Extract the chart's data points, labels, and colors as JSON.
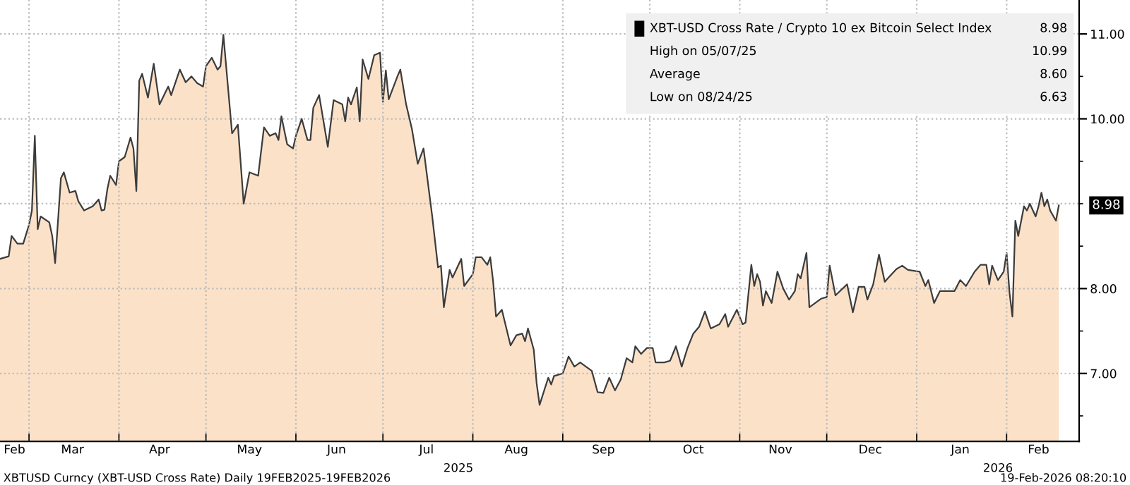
{
  "chart_data": {
    "type": "area",
    "x": [
      "2025-02-19",
      "2025-02-22",
      "2025-02-23",
      "2025-02-25",
      "2025-02-27",
      "2025-03-01",
      "2025-03-02",
      "2025-03-03",
      "2025-03-04",
      "2025-03-05",
      "2025-03-08",
      "2025-03-09",
      "2025-03-10",
      "2025-03-12",
      "2025-03-13",
      "2025-03-15",
      "2025-03-17",
      "2025-03-18",
      "2025-03-20",
      "2025-03-23",
      "2025-03-25",
      "2025-03-26",
      "2025-03-27",
      "2025-03-28",
      "2025-03-29",
      "2025-03-31",
      "2025-04-01",
      "2025-04-03",
      "2025-04-05",
      "2025-04-06",
      "2025-04-07",
      "2025-04-08",
      "2025-04-09",
      "2025-04-11",
      "2025-04-13",
      "2025-04-15",
      "2025-04-18",
      "2025-04-19",
      "2025-04-22",
      "2025-04-24",
      "2025-04-26",
      "2025-04-28",
      "2025-04-30",
      "2025-05-01",
      "2025-05-03",
      "2025-05-05",
      "2025-05-06",
      "2025-05-07",
      "2025-05-10",
      "2025-05-12",
      "2025-05-14",
      "2025-05-16",
      "2025-05-19",
      "2025-05-21",
      "2025-05-23",
      "2025-05-25",
      "2025-05-26",
      "2025-05-27",
      "2025-05-29",
      "2025-05-31",
      "2025-06-01",
      "2025-06-03",
      "2025-06-05",
      "2025-06-06",
      "2025-06-07",
      "2025-06-09",
      "2025-06-12",
      "2025-06-14",
      "2025-06-17",
      "2025-06-18",
      "2025-06-19",
      "2025-06-20",
      "2025-06-22",
      "2025-06-23",
      "2025-06-24",
      "2025-06-26",
      "2025-06-28",
      "2025-06-30",
      "2025-07-01",
      "2025-07-02",
      "2025-07-03",
      "2025-07-06",
      "2025-07-07",
      "2025-07-09",
      "2025-07-11",
      "2025-07-13",
      "2025-07-15",
      "2025-07-18",
      "2025-07-20",
      "2025-07-21",
      "2025-07-22",
      "2025-07-24",
      "2025-07-25",
      "2025-07-28",
      "2025-07-29",
      "2025-08-01",
      "2025-08-02",
      "2025-08-04",
      "2025-08-06",
      "2025-08-07",
      "2025-08-08",
      "2025-08-09",
      "2025-08-11",
      "2025-08-14",
      "2025-08-16",
      "2025-08-18",
      "2025-08-19",
      "2025-08-20",
      "2025-08-22",
      "2025-08-23",
      "2025-08-24",
      "2025-08-27",
      "2025-08-28",
      "2025-08-29",
      "2025-09-01",
      "2025-09-03",
      "2025-09-05",
      "2025-09-07",
      "2025-09-09",
      "2025-09-11",
      "2025-09-13",
      "2025-09-15",
      "2025-09-17",
      "2025-09-19",
      "2025-09-21",
      "2025-09-23",
      "2025-09-25",
      "2025-09-26",
      "2025-09-28",
      "2025-09-30",
      "2025-10-02",
      "2025-10-03",
      "2025-10-06",
      "2025-10-08",
      "2025-10-10",
      "2025-10-12",
      "2025-10-14",
      "2025-10-16",
      "2025-10-18",
      "2025-10-20",
      "2025-10-22",
      "2025-10-25",
      "2025-10-27",
      "2025-10-28",
      "2025-10-31",
      "2025-11-02",
      "2025-11-03",
      "2025-11-05",
      "2025-11-06",
      "2025-11-07",
      "2025-11-08",
      "2025-11-09",
      "2025-11-10",
      "2025-11-12",
      "2025-11-14",
      "2025-11-16",
      "2025-11-18",
      "2025-11-20",
      "2025-11-21",
      "2025-11-22",
      "2025-11-24",
      "2025-11-25",
      "2025-11-27",
      "2025-11-29",
      "2025-12-01",
      "2025-12-02",
      "2025-12-04",
      "2025-12-08",
      "2025-12-10",
      "2025-12-12",
      "2025-12-14",
      "2025-12-15",
      "2025-12-17",
      "2025-12-19",
      "2025-12-21",
      "2025-12-22",
      "2025-12-25",
      "2025-12-27",
      "2025-12-29",
      "2026-01-02",
      "2026-01-04",
      "2026-01-05",
      "2026-01-07",
      "2026-01-09",
      "2026-01-14",
      "2026-01-16",
      "2026-01-18",
      "2026-01-21",
      "2026-01-23",
      "2026-01-25",
      "2026-01-26",
      "2026-01-27",
      "2026-01-29",
      "2026-01-31",
      "2026-02-01",
      "2026-02-02",
      "2026-02-03",
      "2026-02-04",
      "2026-02-05",
      "2026-02-07",
      "2026-02-08",
      "2026-02-09",
      "2026-02-11",
      "2026-02-12",
      "2026-02-13",
      "2026-02-14",
      "2026-02-15",
      "2026-02-16",
      "2026-02-18",
      "2026-02-19"
    ],
    "series": [
      {
        "name": "XBT-USD Cross Rate / Crypto 10 ex Bitcoin Select Index",
        "color": "#fbe1c8",
        "values": [
          8.35,
          8.38,
          8.62,
          8.53,
          8.53,
          8.75,
          8.92,
          9.8,
          8.7,
          8.85,
          8.78,
          8.62,
          8.3,
          9.3,
          9.37,
          9.13,
          9.15,
          9.03,
          8.92,
          8.97,
          9.05,
          8.92,
          8.93,
          9.17,
          9.33,
          9.22,
          9.5,
          9.55,
          9.78,
          9.65,
          9.15,
          10.45,
          10.53,
          10.25,
          10.65,
          10.17,
          10.38,
          10.28,
          10.58,
          10.43,
          10.5,
          10.42,
          10.38,
          10.62,
          10.72,
          10.58,
          10.62,
          10.99,
          9.83,
          9.93,
          9.0,
          9.37,
          9.33,
          9.9,
          9.8,
          9.83,
          9.75,
          10.03,
          9.7,
          9.65,
          9.8,
          10.0,
          9.75,
          9.75,
          10.13,
          10.28,
          9.67,
          10.22,
          10.17,
          9.97,
          10.25,
          10.17,
          10.37,
          9.97,
          10.7,
          10.47,
          10.75,
          10.78,
          10.2,
          10.57,
          10.23,
          10.5,
          10.58,
          10.17,
          9.88,
          9.47,
          9.65,
          8.85,
          8.25,
          8.27,
          7.78,
          8.22,
          8.13,
          8.35,
          8.03,
          8.17,
          8.37,
          8.37,
          8.28,
          8.37,
          8.08,
          7.67,
          7.75,
          7.33,
          7.45,
          7.47,
          7.38,
          7.53,
          7.28,
          6.88,
          6.63,
          6.95,
          6.87,
          6.97,
          7.0,
          7.2,
          7.08,
          7.13,
          7.08,
          7.03,
          6.78,
          6.77,
          6.95,
          6.8,
          6.93,
          7.18,
          7.13,
          7.32,
          7.23,
          7.3,
          7.3,
          7.13,
          7.13,
          7.15,
          7.32,
          7.08,
          7.3,
          7.47,
          7.55,
          7.73,
          7.53,
          7.58,
          7.7,
          7.55,
          7.75,
          7.58,
          7.6,
          8.28,
          8.03,
          8.17,
          8.08,
          7.8,
          7.97,
          7.83,
          8.2,
          8.0,
          7.87,
          7.97,
          8.17,
          8.12,
          8.42,
          7.78,
          7.83,
          7.88,
          7.9,
          8.27,
          7.92,
          8.05,
          7.72,
          8.02,
          8.02,
          7.87,
          8.05,
          8.4,
          8.08,
          8.12,
          8.23,
          8.27,
          8.22,
          8.2,
          8.03,
          8.1,
          7.83,
          7.97,
          7.97,
          8.1,
          8.03,
          8.2,
          8.28,
          8.28,
          8.05,
          8.27,
          8.1,
          8.2,
          8.42,
          7.95,
          7.67,
          8.8,
          8.62,
          8.97,
          8.92,
          9.0,
          8.85,
          8.97,
          9.13,
          8.97,
          9.05,
          8.92,
          8.8,
          8.98
        ]
      }
    ],
    "xlim": [
      "2025-02-19",
      "2026-02-26"
    ],
    "xticks": [
      {
        "value": "2025-02-24",
        "label": "Feb"
      },
      {
        "value": "2025-03-01",
        "label": null
      },
      {
        "value": "2025-03-16",
        "label": "Mar"
      },
      {
        "value": "2025-04-01",
        "label": null
      },
      {
        "value": "2025-04-15",
        "label": "Apr"
      },
      {
        "value": "2025-05-01",
        "label": null
      },
      {
        "value": "2025-05-16",
        "label": "May"
      },
      {
        "value": "2025-06-01",
        "label": null
      },
      {
        "value": "2025-06-15",
        "label": "Jun"
      },
      {
        "value": "2025-07-01",
        "label": null
      },
      {
        "value": "2025-07-16",
        "label": "Jul"
      },
      {
        "value": "2025-08-01",
        "label": null
      },
      {
        "value": "2025-08-16",
        "label": "Aug"
      },
      {
        "value": "2025-09-01",
        "label": null
      },
      {
        "value": "2025-09-15",
        "label": "Sep"
      },
      {
        "value": "2025-10-01",
        "label": null
      },
      {
        "value": "2025-10-16",
        "label": "Oct"
      },
      {
        "value": "2025-11-01",
        "label": null
      },
      {
        "value": "2025-11-15",
        "label": "Nov"
      },
      {
        "value": "2025-12-01",
        "label": null
      },
      {
        "value": "2025-12-16",
        "label": "Dec"
      },
      {
        "value": "2026-01-01",
        "label": null
      },
      {
        "value": "2026-01-16",
        "label": "Jan"
      },
      {
        "value": "2026-02-01",
        "label": null
      },
      {
        "value": "2026-02-12",
        "label": "Feb"
      }
    ],
    "ylim": [
      6.2,
      11.4
    ],
    "yticks": [
      {
        "value": 6.5,
        "label": null
      },
      {
        "value": 7,
        "label": "7.00"
      },
      {
        "value": 7.5,
        "label": null
      },
      {
        "value": 8,
        "label": "8.00"
      },
      {
        "value": 8.5,
        "label": null
      },
      {
        "value": 9,
        "label": null
      },
      {
        "value": 9.5,
        "label": null
      },
      {
        "value": 10,
        "label": "10.00"
      },
      {
        "value": 10.5,
        "label": null
      },
      {
        "value": 11,
        "label": "11.00"
      }
    ],
    "grid": true,
    "legend": "top right",
    "annotations": [
      "8.98",
      "High on 05/07/25",
      "10.99",
      "Average",
      "8.60",
      "Low on 08/24/25",
      "6.63",
      "XBTUSD Curncy (XBT-USD Cross Rate) Daily 19FEB2025-19FEB2026",
      "19-Feb-2026 08:20:10",
      "2025",
      "2026",
      {
        "text": "8.98",
        "x": "2026-02-19",
        "y": 8.98
      }
    ]
  }
}
